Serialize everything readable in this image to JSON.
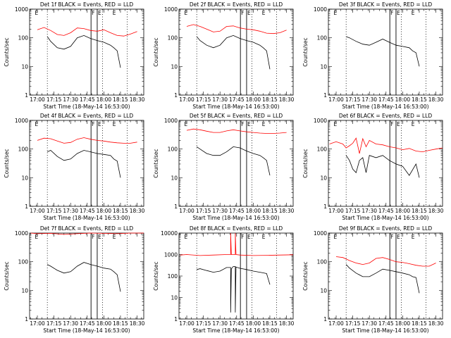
{
  "colors": {
    "events": "#000000",
    "lld": "#ff0000",
    "background": "#ffffff"
  },
  "chart_data": [
    {
      "type": "line",
      "title": "Det 1f BLACK = Events, RED = LLD",
      "xlabel": "Start Time (18-May-14 16:53:00)",
      "ylabel": "Counts/sec",
      "xlim": [
        16.883,
        18.6
      ],
      "ylim": [
        1,
        1000
      ],
      "yscale": "log",
      "x_tick_labels": [
        "17:00",
        "17:15",
        "17:30",
        "17:45",
        "18:00",
        "18:15",
        "18:30"
      ],
      "y_tick_labels": [
        "1",
        "10",
        "100",
        "1000"
      ],
      "markers": [
        {
          "label": "E",
          "x": 16.95
        },
        {
          "label": "F",
          "x": 17.807
        },
        {
          "label": "E",
          "x": 17.9
        },
        {
          "label": "E",
          "x": 18.12
        }
      ],
      "dotted_lines": [
        17.15,
        17.98,
        18.35
      ],
      "series": [
        {
          "name": "LLD",
          "color": "#ff0000",
          "x": [
            17,
            17.1,
            17.2,
            17.3,
            17.4,
            17.5,
            17.6,
            17.7,
            17.8,
            17.9,
            18,
            18.1,
            18.2,
            18.3,
            18.4,
            18.5
          ],
          "values": [
            190,
            230,
            180,
            130,
            120,
            150,
            220,
            210,
            180,
            170,
            190,
            150,
            120,
            115,
            135,
            165
          ]
        },
        {
          "name": "Events",
          "color": "#000000",
          "x": [
            17.15,
            17.2,
            17.3,
            17.4,
            17.5,
            17.6,
            17.7,
            17.8,
            17.9,
            18,
            18.1,
            18.15,
            18.2,
            18.25
          ],
          "values": [
            110,
            75,
            45,
            40,
            50,
            100,
            120,
            95,
            80,
            70,
            55,
            45,
            35,
            9
          ]
        }
      ]
    },
    {
      "type": "line",
      "title": "Det 2f BLACK = Events, RED = LLD",
      "xlabel": "Start Time (18-May-14 16:53:00)",
      "ylabel": "Counts/sec",
      "xlim": [
        16.883,
        18.6
      ],
      "ylim": [
        1,
        1000
      ],
      "yscale": "log",
      "x_tick_labels": [
        "17:00",
        "17:15",
        "17:30",
        "17:45",
        "18:00",
        "18:15",
        "18:30"
      ],
      "y_tick_labels": [
        "1",
        "10",
        "100",
        "1000"
      ],
      "markers": [
        {
          "label": "E",
          "x": 16.95
        },
        {
          "label": "F",
          "x": 17.807
        },
        {
          "label": "E",
          "x": 17.9
        },
        {
          "label": "E",
          "x": 18.12
        }
      ],
      "dotted_lines": [
        17.15,
        17.98,
        18.35
      ],
      "series": [
        {
          "name": "LLD",
          "color": "#ff0000",
          "x": [
            17,
            17.1,
            17.2,
            17.3,
            17.4,
            17.5,
            17.6,
            17.7,
            17.8,
            17.9,
            18,
            18.1,
            18.2,
            18.3,
            18.4,
            18.5
          ],
          "values": [
            250,
            290,
            250,
            200,
            160,
            170,
            250,
            260,
            220,
            200,
            190,
            170,
            145,
            140,
            150,
            185
          ]
        },
        {
          "name": "Events",
          "color": "#000000",
          "x": [
            17.15,
            17.2,
            17.3,
            17.4,
            17.5,
            17.6,
            17.7,
            17.8,
            17.9,
            18,
            18.1,
            18.15,
            18.2,
            18.25
          ],
          "values": [
            110,
            80,
            55,
            45,
            55,
            100,
            120,
            95,
            80,
            70,
            55,
            45,
            35,
            8
          ]
        }
      ]
    },
    {
      "type": "line",
      "title": "Det 3f BLACK = Events, RED = LLD",
      "xlabel": "Start Time (18-May-14 16:53:00)",
      "ylabel": "Counts/sec",
      "xlim": [
        16.883,
        18.6
      ],
      "ylim": [
        1,
        1000
      ],
      "yscale": "log",
      "x_tick_labels": [
        "17:00",
        "17:15",
        "17:30",
        "17:45",
        "18:00",
        "18:15",
        "18:30"
      ],
      "y_tick_labels": [
        "1",
        "10",
        "100",
        "1000"
      ],
      "markers": [
        {
          "label": "E",
          "x": 16.95
        },
        {
          "label": "F",
          "x": 17.807
        },
        {
          "label": "E",
          "x": 17.9
        },
        {
          "label": "E",
          "x": 18.12
        }
      ],
      "dotted_lines": [
        17.15,
        17.98,
        18.35
      ],
      "series": [
        {
          "name": "Events",
          "color": "#000000",
          "x": [
            17.15,
            17.2,
            17.3,
            17.4,
            17.5,
            17.6,
            17.7,
            17.8,
            17.9,
            18,
            18.1,
            18.15,
            18.2,
            18.25
          ],
          "values": [
            110,
            100,
            75,
            60,
            55,
            70,
            90,
            70,
            55,
            50,
            45,
            35,
            30,
            10
          ]
        }
      ]
    },
    {
      "type": "line",
      "title": "Det 4f BLACK = Events, RED = LLD",
      "xlabel": "Start Time (18-May-14 16:53:00)",
      "ylabel": "Counts/sec",
      "xlim": [
        16.883,
        18.6
      ],
      "ylim": [
        1,
        1000
      ],
      "yscale": "log",
      "x_tick_labels": [
        "17:00",
        "17:15",
        "17:30",
        "17:45",
        "18:00",
        "18:15",
        "18:30"
      ],
      "y_tick_labels": [
        "1",
        "10",
        "100",
        "1000"
      ],
      "markers": [
        {
          "label": "E",
          "x": 16.95
        },
        {
          "label": "F",
          "x": 17.807
        },
        {
          "label": "E",
          "x": 17.9
        },
        {
          "label": "E",
          "x": 18.12
        }
      ],
      "dotted_lines": [
        17.15,
        17.98,
        18.35
      ],
      "series": [
        {
          "name": "LLD",
          "color": "#ff0000",
          "x": [
            17,
            17.1,
            17.2,
            17.3,
            17.4,
            17.5,
            17.6,
            17.7,
            17.8,
            17.9,
            18,
            18.1,
            18.2,
            18.3,
            18.4,
            18.5
          ],
          "values": [
            200,
            240,
            230,
            190,
            160,
            170,
            220,
            250,
            220,
            200,
            190,
            175,
            165,
            160,
            160,
            175
          ]
        },
        {
          "name": "Events",
          "color": "#000000",
          "x": [
            17.15,
            17.2,
            17.3,
            17.4,
            17.5,
            17.6,
            17.7,
            17.8,
            17.9,
            18,
            18.1,
            18.15,
            18.2,
            18.25
          ],
          "values": [
            80,
            90,
            55,
            40,
            45,
            70,
            90,
            80,
            70,
            65,
            60,
            45,
            38,
            10
          ]
        }
      ]
    },
    {
      "type": "line",
      "title": "Det 5f BLACK = Events, RED = LLD",
      "xlabel": "Start Time (18-May-14 16:53:00)",
      "ylabel": "Counts/sec",
      "xlim": [
        16.883,
        18.6
      ],
      "ylim": [
        1,
        1000
      ],
      "yscale": "log",
      "x_tick_labels": [
        "17:00",
        "17:15",
        "17:30",
        "17:45",
        "18:00",
        "18:15",
        "18:30"
      ],
      "y_tick_labels": [
        "1",
        "10",
        "100",
        "1000"
      ],
      "markers": [
        {
          "label": "E",
          "x": 16.95
        },
        {
          "label": "F",
          "x": 17.807
        },
        {
          "label": "E",
          "x": 17.9
        },
        {
          "label": "E",
          "x": 18.12
        }
      ],
      "dotted_lines": [
        17.15,
        17.98,
        18.35
      ],
      "series": [
        {
          "name": "LLD",
          "color": "#ff0000",
          "x": [
            17,
            17.1,
            17.2,
            17.3,
            17.4,
            17.5,
            17.6,
            17.7,
            17.8,
            17.9,
            18,
            18.1,
            18.2,
            18.3,
            18.4,
            18.5
          ],
          "values": [
            450,
            500,
            470,
            420,
            380,
            380,
            430,
            470,
            430,
            400,
            380,
            360,
            350,
            350,
            360,
            380
          ]
        },
        {
          "name": "Events",
          "color": "#000000",
          "x": [
            17.15,
            17.2,
            17.3,
            17.4,
            17.5,
            17.6,
            17.7,
            17.8,
            17.9,
            18,
            18.1,
            18.15,
            18.2,
            18.25
          ],
          "values": [
            120,
            100,
            70,
            60,
            60,
            80,
            120,
            110,
            85,
            70,
            60,
            50,
            40,
            12
          ]
        }
      ]
    },
    {
      "type": "line",
      "title": "Det 6f BLACK = Events, RED = LLD",
      "xlabel": "Start Time (18-May-14 16:53:00)",
      "ylabel": "Counts/sec",
      "xlim": [
        16.883,
        18.6
      ],
      "ylim": [
        1,
        1000
      ],
      "yscale": "log",
      "x_tick_labels": [
        "17:00",
        "17:15",
        "17:30",
        "17:45",
        "18:00",
        "18:15",
        "18:30"
      ],
      "y_tick_labels": [
        "1",
        "10",
        "100",
        "1000"
      ],
      "markers": [
        {
          "label": "E",
          "x": 16.95
        },
        {
          "label": "F",
          "x": 17.807
        },
        {
          "label": "E",
          "x": 17.9
        },
        {
          "label": "E",
          "x": 18.12
        }
      ],
      "dotted_lines": [
        17.15,
        17.98,
        18.35
      ],
      "series": [
        {
          "name": "LLD",
          "color": "#ff0000",
          "x": [
            16.9,
            17,
            17.1,
            17.15,
            17.2,
            17.25,
            17.3,
            17.35,
            17.4,
            17.45,
            17.5,
            17.6,
            17.7,
            17.8,
            17.9,
            18,
            18.1,
            18.2,
            18.3,
            18.4,
            18.5,
            18.6
          ],
          "values": [
            150,
            180,
            150,
            110,
            130,
            160,
            240,
            70,
            230,
            120,
            200,
            150,
            140,
            120,
            110,
            95,
            105,
            85,
            80,
            90,
            100,
            110
          ]
        },
        {
          "name": "Events",
          "color": "#000000",
          "x": [
            17.15,
            17.2,
            17.25,
            17.3,
            17.35,
            17.4,
            17.45,
            17.5,
            17.6,
            17.7,
            17.8,
            17.9,
            18,
            18.1,
            18.2,
            18.25
          ],
          "values": [
            60,
            40,
            20,
            15,
            40,
            50,
            15,
            60,
            50,
            60,
            40,
            30,
            25,
            12,
            30,
            10
          ]
        }
      ]
    },
    {
      "type": "line",
      "title": "Det 7f BLACK = Events, RED = LLD",
      "xlabel": "Start Time (18-May-14 16:53:00)",
      "ylabel": "Counts/sec",
      "xlim": [
        16.883,
        18.6
      ],
      "ylim": [
        1,
        1000
      ],
      "yscale": "log",
      "x_tick_labels": [
        "17:00",
        "17:15",
        "17:30",
        "17:45",
        "18:00",
        "18:15",
        "18:30"
      ],
      "y_tick_labels": [
        "1",
        "10",
        "100",
        "1000"
      ],
      "markers": [
        {
          "label": "E",
          "x": 16.95
        },
        {
          "label": "F",
          "x": 17.807
        },
        {
          "label": "E",
          "x": 17.9
        },
        {
          "label": "E",
          "x": 18.12
        }
      ],
      "dotted_lines": [
        17.15,
        17.98,
        18.35
      ],
      "series": [
        {
          "name": "LLD",
          "color": "#ff0000",
          "x": [
            16.9,
            17,
            17.2,
            17.4,
            17.6,
            17.8,
            18,
            18.2,
            18.4,
            18.6
          ],
          "values": [
            1000,
            950,
            980,
            900,
            950,
            1000,
            980,
            950,
            1000,
            1000
          ]
        },
        {
          "name": "Events",
          "color": "#000000",
          "x": [
            17.15,
            17.2,
            17.3,
            17.4,
            17.5,
            17.6,
            17.7,
            17.8,
            17.9,
            18,
            18.1,
            18.15,
            18.2,
            18.25
          ],
          "values": [
            80,
            70,
            50,
            40,
            45,
            70,
            95,
            80,
            70,
            60,
            55,
            45,
            35,
            9
          ]
        }
      ]
    },
    {
      "type": "line",
      "title": "Det 8f BLACK = Events, RED = LLD",
      "xlabel": "Start Time (18-May-14 16:53:00)",
      "ylabel": "Counts/sec",
      "xlim": [
        16.883,
        18.6
      ],
      "ylim": [
        1,
        10000
      ],
      "yscale": "log",
      "x_tick_labels": [
        "17:00",
        "17:15",
        "17:30",
        "17:45",
        "18:00",
        "18:15",
        "18:30"
      ],
      "y_tick_labels": [
        "1",
        "10",
        "100",
        "1000",
        "10000"
      ],
      "markers": [
        {
          "label": "E",
          "x": 16.95
        },
        {
          "label": "F",
          "x": 17.807
        },
        {
          "label": "E",
          "x": 17.9
        },
        {
          "label": "E",
          "x": 18.12
        }
      ],
      "dotted_lines": [
        17.15,
        17.98,
        18.35
      ],
      "series": [
        {
          "name": "LLD",
          "color": "#ff0000",
          "x": [
            16.9,
            17,
            17.2,
            17.4,
            17.6,
            17.66,
            17.66,
            17.67,
            17.7,
            17.73,
            17.73,
            17.74,
            17.8,
            18,
            18.2,
            18.4,
            18.6
          ],
          "values": [
            950,
            1000,
            900,
            950,
            1000,
            1000,
            10000,
            1000,
            1000,
            1000,
            10000,
            1000,
            950,
            900,
            920,
            950,
            980
          ]
        },
        {
          "name": "Events",
          "color": "#000000",
          "x": [
            17.15,
            17.2,
            17.3,
            17.4,
            17.5,
            17.6,
            17.66,
            17.66,
            17.67,
            17.7,
            17.73,
            17.73,
            17.74,
            17.8,
            17.9,
            18,
            18.1,
            18.15,
            18.2,
            18.25
          ],
          "values": [
            200,
            220,
            180,
            150,
            170,
            250,
            250,
            2,
            220,
            280,
            280,
            2,
            260,
            230,
            200,
            170,
            150,
            140,
            130,
            40
          ]
        }
      ]
    },
    {
      "type": "line",
      "title": "Det 9f BLACK = Events, RED = LLD",
      "xlabel": "Start Time (18-May-14 16:53:00)",
      "ylabel": "Counts/sec",
      "xlim": [
        16.883,
        18.6
      ],
      "ylim": [
        1,
        1000
      ],
      "yscale": "log",
      "x_tick_labels": [
        "17:00",
        "17:15",
        "17:30",
        "17:45",
        "18:00",
        "18:15",
        "18:30"
      ],
      "y_tick_labels": [
        "1",
        "10",
        "100",
        "1000"
      ],
      "markers": [
        {
          "label": "E",
          "x": 16.95
        },
        {
          "label": "F",
          "x": 17.807
        },
        {
          "label": "E",
          "x": 17.9
        },
        {
          "label": "E",
          "x": 18.12
        }
      ],
      "dotted_lines": [
        17.15,
        17.98,
        18.35
      ],
      "series": [
        {
          "name": "LLD",
          "color": "#ff0000",
          "x": [
            17,
            17.1,
            17.2,
            17.3,
            17.4,
            17.5,
            17.6,
            17.7,
            17.8,
            17.9,
            18,
            18.1,
            18.2,
            18.3,
            18.4,
            18.5
          ],
          "values": [
            150,
            140,
            110,
            90,
            80,
            90,
            130,
            140,
            120,
            100,
            95,
            85,
            75,
            70,
            70,
            90
          ]
        },
        {
          "name": "Events",
          "color": "#000000",
          "x": [
            17.15,
            17.2,
            17.3,
            17.4,
            17.5,
            17.6,
            17.7,
            17.8,
            17.9,
            18,
            18.1,
            18.15,
            18.2,
            18.25
          ],
          "values": [
            80,
            60,
            40,
            30,
            30,
            40,
            55,
            50,
            45,
            40,
            35,
            30,
            28,
            8
          ]
        }
      ]
    }
  ]
}
